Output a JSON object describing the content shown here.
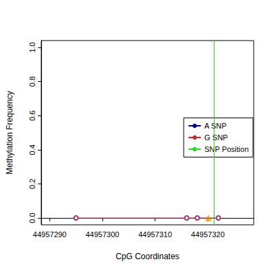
{
  "chart_data": {
    "type": "line",
    "x_label": "CpG Coordinates",
    "y_label": "Methylation Frequency",
    "xlim": [
      44957288.4,
      44957328.7
    ],
    "ylim": [
      -0.04,
      1.04
    ],
    "xticks": [
      44957290,
      44957300,
      44957310,
      44957320
    ],
    "yticks": [
      {
        "value": 0,
        "label": "0.0"
      },
      {
        "value": 0.2,
        "label": "0.2"
      },
      {
        "value": 0.4,
        "label": "0.4"
      },
      {
        "value": 0.6,
        "label": "0.6"
      },
      {
        "value": 0.8,
        "label": "0.8"
      },
      {
        "value": 1,
        "label": "1.0"
      }
    ],
    "grid": false,
    "legend": "right",
    "series": [
      {
        "name": "A SNP",
        "type": "line",
        "color": "#00008b",
        "x": [],
        "values": []
      },
      {
        "name": "G SNP",
        "type": "line",
        "color": "#cd2626",
        "x": [],
        "values": []
      },
      {
        "name": "SNP Position",
        "type": "vline",
        "color": "#22dd22",
        "x": [
          44957321.2
        ]
      },
      {
        "type": "line",
        "color": "#b0306a",
        "marker": "emptyCircle",
        "line_style": "solid",
        "x": [
          44957295,
          44957316,
          44957318,
          44957322
        ],
        "values": [
          0,
          0,
          0,
          0
        ]
      },
      {
        "type": "scatter",
        "color": "#ffa500",
        "marker": "triangle",
        "x": [
          44957320.1
        ],
        "values": [
          0
        ]
      }
    ]
  }
}
